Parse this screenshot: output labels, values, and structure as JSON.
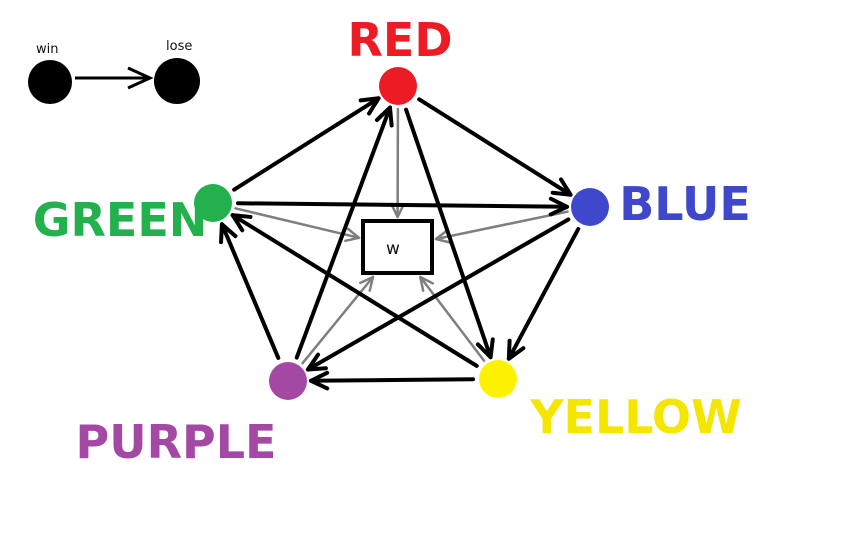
{
  "legend": {
    "from_label": "win",
    "to_label": "lose",
    "color": "#000000"
  },
  "center_box": {
    "label": "w"
  },
  "nodes": {
    "red": {
      "label": "RED",
      "color": "#ed1c24"
    },
    "blue": {
      "label": "BLUE",
      "color": "#3f48cc"
    },
    "yellow": {
      "label": "YELLOW",
      "color": "#fff200"
    },
    "purple": {
      "label": "PURPLE",
      "color": "#a349a4"
    },
    "green": {
      "label": "GREEN",
      "color": "#22b14c"
    }
  },
  "label_colors": {
    "yellow_text": "#f5e600"
  },
  "win_edges": [
    {
      "from": "red",
      "to": "blue"
    },
    {
      "from": "red",
      "to": "yellow"
    },
    {
      "from": "blue",
      "to": "yellow"
    },
    {
      "from": "blue",
      "to": "purple"
    },
    {
      "from": "yellow",
      "to": "purple"
    },
    {
      "from": "yellow",
      "to": "green"
    },
    {
      "from": "purple",
      "to": "green"
    },
    {
      "from": "purple",
      "to": "red"
    },
    {
      "from": "green",
      "to": "red"
    },
    {
      "from": "green",
      "to": "blue"
    }
  ],
  "to_center_edges": [
    "red",
    "blue",
    "yellow",
    "purple",
    "green"
  ],
  "edge_colors": {
    "win": "#000000",
    "center": "#7f7f7f"
  }
}
